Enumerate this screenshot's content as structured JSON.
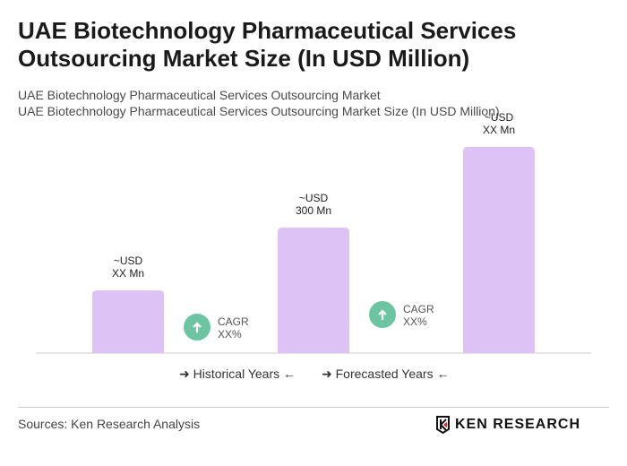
{
  "title": "UAE Biotechnology Pharmaceutical Services Outsourcing Market Size (In USD Million)",
  "subtitle1": "UAE Biotechnology Pharmaceutical Services Outsourcing Market",
  "subtitle2": "UAE Biotechnology Pharmaceutical Services Outsourcing Market Size (In USD Million)",
  "chart_data": {
    "type": "bar",
    "values": [
      150,
      300,
      493
    ],
    "data_labels": [
      [
        "~USD",
        "XX Mn"
      ],
      [
        "~USD",
        "300 Mn"
      ],
      [
        "~USD",
        "XX Mn"
      ]
    ],
    "bar_color": "#dcc2f5",
    "cagr": [
      {
        "label": "CAGR",
        "value": "XX%"
      },
      {
        "label": "CAGR",
        "value": "XX%"
      }
    ],
    "cagr_color": "#6cc5a0",
    "legend": [
      "Historical Years",
      "Forecasted Years"
    ],
    "grid": false
  },
  "footer": {
    "source": "Sources: Ken Research Analysis",
    "logo": "KEN RESEARCH"
  }
}
